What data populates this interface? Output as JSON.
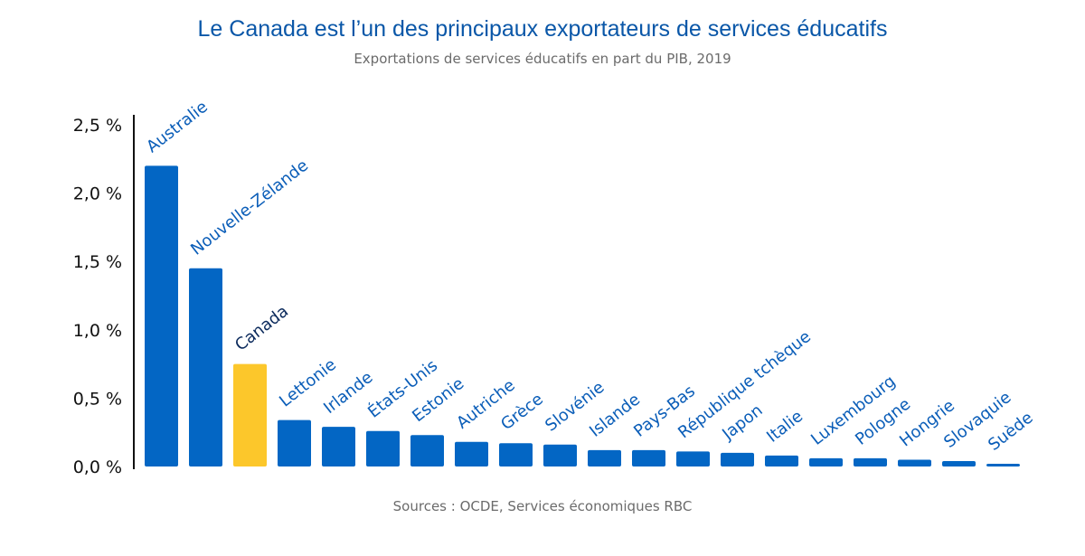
{
  "chart_data": {
    "type": "bar",
    "title": "Le Canada est l’un des principaux exportateurs de services éducatifs",
    "subtitle": "Exportations de services éducatifs en part du PIB, 2019",
    "source": "Sources : OCDE, Services économiques RBC",
    "ylim": [
      0,
      2.5
    ],
    "yticks": [
      0.0,
      0.5,
      1.0,
      1.5,
      2.0,
      2.5
    ],
    "ytick_labels": [
      "0,0 %",
      "0,5 %",
      "1,0 %",
      "1,5 %",
      "2,0 %",
      "2,5 %"
    ],
    "unit": "%",
    "categories": [
      "Australie",
      "Nouvelle-Zélande",
      "Canada",
      "Lettonie",
      "Irlande",
      "États-Unis",
      "Estonie",
      "Autriche",
      "Grèce",
      "Slovénie",
      "Islande",
      "Pays-Bas",
      "République tchèque",
      "Japon",
      "Italie",
      "Luxembourg",
      "Pologne",
      "Hongrie",
      "Slovaquie",
      "Suède"
    ],
    "values": [
      2.2,
      1.45,
      0.75,
      0.34,
      0.29,
      0.26,
      0.23,
      0.18,
      0.17,
      0.16,
      0.12,
      0.12,
      0.11,
      0.1,
      0.08,
      0.06,
      0.06,
      0.05,
      0.04,
      0.02
    ],
    "highlight": "Canada",
    "colors": {
      "bar": "#0366c4",
      "highlight_bar": "#fcc72b",
      "label": "#0a5db8",
      "highlight_label": "#0b2a5c",
      "axis": "#111111"
    }
  }
}
